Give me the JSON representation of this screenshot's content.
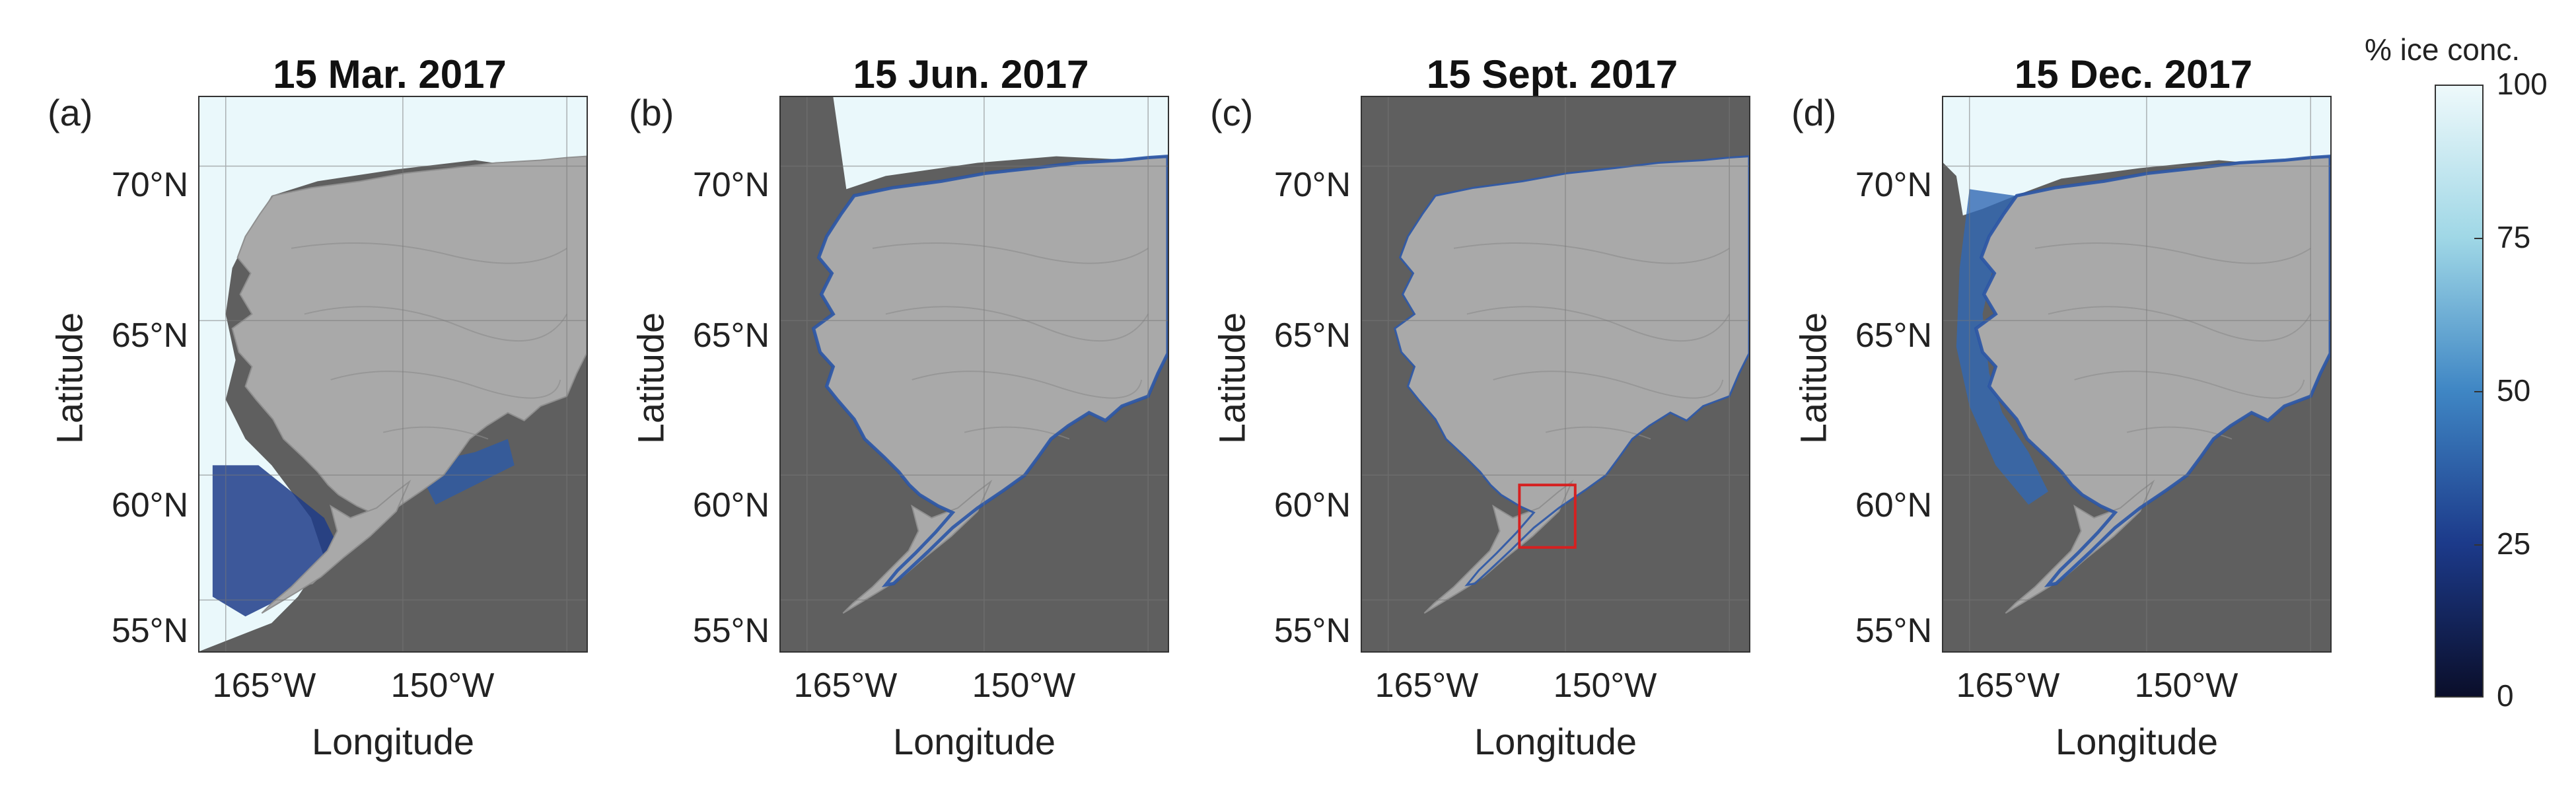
{
  "panels": [
    {
      "letter": "(a)",
      "title": "15 Mar. 2017",
      "ice": "winter",
      "box": false
    },
    {
      "letter": "(b)",
      "title": "15 Jun. 2017",
      "ice": "spring",
      "box": false
    },
    {
      "letter": "(c)",
      "title": "15 Sept. 2017",
      "ice": "summer",
      "box": true
    },
    {
      "letter": "(d)",
      "title": "15 Dec. 2017",
      "ice": "early-winter",
      "box": false
    }
  ],
  "axes": {
    "ylabel": "Latitude",
    "xlabel": "Longitude",
    "lat_ticks": [
      "70°N",
      "65°N",
      "60°N",
      "55°N"
    ],
    "lon_ticks": [
      "165°W",
      "150°W"
    ]
  },
  "colorbar": {
    "title": "% ice conc.",
    "ticks": [
      "100",
      "75",
      "50",
      "25",
      "0"
    ],
    "range": [
      0,
      100
    ],
    "colors": [
      "#0a0e2a",
      "#1c3a8a",
      "#3f86c4",
      "#9fd7e6",
      "#eef9fb"
    ]
  },
  "colors": {
    "ocean": "#5f5f5f",
    "land": "#a9a9a9",
    "ice_full": "#eaf8fb",
    "ice_edge": "#2a55a6",
    "box": "#d62020"
  }
}
